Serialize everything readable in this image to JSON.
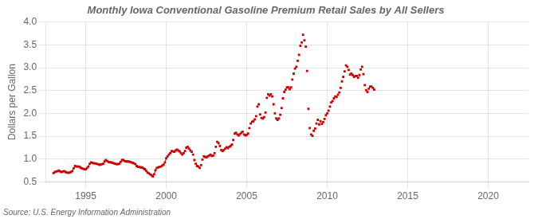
{
  "chart_data": {
    "type": "line",
    "title": "Monthly Iowa Conventional Gasoline Premium Retail Sales by All Sellers",
    "ylabel": "Dollars per Gallon",
    "annotations": [
      "Source: U.S. Energy Information Administration"
    ],
    "xlim": [
      1992.5,
      2022.5
    ],
    "xticks": [
      1995,
      2000,
      2005,
      2010,
      2015,
      2020
    ],
    "ylim": [
      0.5,
      4.0
    ],
    "yticks": [
      0.5,
      {
        "value": 1.0,
        "label": "1.0"
      },
      1.5,
      {
        "value": 2.0,
        "label": "2.0"
      },
      2.5,
      {
        "value": 3.0,
        "label": "3.0"
      },
      3.5,
      {
        "value": 4.0,
        "label": "4.0"
      }
    ],
    "grid": true,
    "series": [
      {
        "color": "#cc0000",
        "marker": "square",
        "line_style": "solid",
        "x": [
          1993,
          1993.0833333333333,
          1993.1666666666667,
          1993.25,
          1993.3333333333333,
          1993.4166666666667,
          1993.5,
          1993.5833333333333,
          1993.6666666666667,
          1993.75,
          1993.8333333333333,
          1993.9166666666667,
          1994,
          1994.0833333333333,
          1994.1666666666667,
          1994.25,
          1994.3333333333333,
          1994.4166666666667,
          1994.5,
          1994.5833333333333,
          1994.6666666666667,
          1994.75,
          1994.8333333333333,
          1994.9166666666667,
          1995,
          1995.0833333333333,
          1995.1666666666667,
          1995.25,
          1995.3333333333333,
          1995.4166666666667,
          1995.5,
          1995.5833333333333,
          1995.6666666666667,
          1995.75,
          1995.8333333333333,
          1995.9166666666667,
          1996,
          1996.0833333333333,
          1996.1666666666667,
          1996.25,
          1996.3333333333333,
          1996.4166666666667,
          1996.5,
          1996.5833333333333,
          1996.6666666666667,
          1996.75,
          1996.8333333333333,
          1996.9166666666667,
          1997,
          1997.0833333333333,
          1997.1666666666667,
          1997.25,
          1997.3333333333333,
          1997.4166666666667,
          1997.5,
          1997.5833333333333,
          1997.6666666666667,
          1997.75,
          1997.8333333333333,
          1997.9166666666667,
          1998,
          1998.0833333333333,
          1998.1666666666667,
          1998.25,
          1998.3333333333333,
          1998.4166666666667,
          1998.5,
          1998.5833333333333,
          1998.6666666666667,
          1998.75,
          1998.8333333333333,
          1998.9166666666667,
          1999,
          1999.0833333333333,
          1999.1666666666667,
          1999.25,
          1999.3333333333333,
          1999.4166666666667,
          1999.5,
          1999.5833333333333,
          1999.6666666666667,
          1999.75,
          1999.8333333333333,
          1999.9166666666667,
          2000,
          2000.0833333333333,
          2000.1666666666667,
          2000.25,
          2000.3333333333333,
          2000.4166666666667,
          2000.5,
          2000.5833333333333,
          2000.6666666666667,
          2000.75,
          2000.8333333333333,
          2000.9166666666667
        ],
        "values": [
          0.695,
          0.72,
          0.73,
          0.74,
          0.75,
          0.73,
          0.72,
          0.73,
          0.74,
          0.72,
          0.71,
          0.7,
          0.71,
          0.72,
          0.74,
          0.8,
          0.85,
          0.84,
          0.84,
          0.84,
          0.82,
          0.8,
          0.79,
          0.78,
          0.78,
          0.81,
          0.84,
          0.9,
          0.93,
          0.92,
          0.91,
          0.91,
          0.9,
          0.89,
          0.88,
          0.88,
          0.89,
          0.9,
          0.95,
          0.98,
          0.96,
          0.94,
          0.93,
          0.93,
          0.92,
          0.91,
          0.9,
          0.89,
          0.89,
          0.9,
          0.94,
          0.98,
          0.98,
          0.96,
          0.95,
          0.95,
          0.95,
          0.94,
          0.93,
          0.92,
          0.91,
          0.89,
          0.85,
          0.83,
          0.83,
          0.82,
          0.82,
          0.8,
          0.78,
          0.75,
          0.71,
          0.69,
          0.67,
          0.65,
          0.62,
          0.67,
          0.76,
          0.81,
          0.82,
          0.83,
          0.84,
          0.86,
          0.88,
          0.93,
          1.02,
          1.06,
          1.1,
          1.13,
          1.18,
          1.17,
          1.16,
          1.19,
          1.21,
          1.19,
          1.17,
          1.13
        ]
      },
      {
        "color": "#cc0000",
        "marker": "square",
        "line_style": "none",
        "x": [
          2001,
          2001.0833333333333,
          2001.1666666666667,
          2001.25,
          2001.3333333333333,
          2001.4166666666667,
          2001.5,
          2001.5833333333333,
          2001.6666666666667,
          2001.75,
          2001.8333333333333,
          2001.9166666666667,
          2002,
          2002.0833333333333,
          2002.1666666666667,
          2002.25,
          2002.3333333333333,
          2002.4166666666667,
          2002.5,
          2002.5833333333333,
          2002.6666666666667,
          2002.75,
          2002.8333333333333,
          2002.9166666666667,
          2003,
          2003.0833333333333,
          2003.1666666666667,
          2003.25,
          2003.3333333333333,
          2003.4166666666667,
          2003.5,
          2003.5833333333333,
          2003.6666666666667,
          2003.75,
          2003.8333333333333,
          2003.9166666666667,
          2004,
          2004.0833333333333,
          2004.1666666666667,
          2004.25,
          2004.3333333333333,
          2004.4166666666667,
          2004.5,
          2004.5833333333333,
          2004.6666666666667,
          2004.75,
          2004.8333333333333,
          2004.9166666666667,
          2005,
          2005.0833333333333,
          2005.1666666666667,
          2005.25,
          2005.3333333333333,
          2005.4166666666667,
          2005.5,
          2005.5833333333333,
          2005.6666666666667,
          2005.75,
          2005.8333333333333,
          2005.9166666666667,
          2006,
          2006.0833333333333,
          2006.1666666666667,
          2006.25,
          2006.3333333333333,
          2006.4166666666667,
          2006.5,
          2006.5833333333333,
          2006.6666666666667,
          2006.75,
          2006.8333333333333,
          2006.9166666666667,
          2007,
          2007.0833333333333,
          2007.1666666666667,
          2007.25,
          2007.3333333333333,
          2007.4166666666667,
          2007.5,
          2007.5833333333333,
          2007.6666666666667,
          2007.75,
          2007.8333333333333,
          2007.9166666666667,
          2008,
          2008.0833333333333,
          2008.1666666666667,
          2008.25,
          2008.3333333333333,
          2008.4166666666667,
          2008.5,
          2008.5833333333333,
          2008.6666666666667,
          2008.75,
          2008.8333333333333,
          2008.9166666666667,
          2009,
          2009.0833333333333,
          2009.1666666666667,
          2009.25,
          2009.3333333333333,
          2009.4166666666667,
          2009.5,
          2009.5833333333333,
          2009.6666666666667,
          2009.75,
          2009.8333333333333,
          2009.9166666666667,
          2010,
          2010.0833333333333,
          2010.1666666666667,
          2010.25,
          2010.3333333333333,
          2010.4166666666667,
          2010.5,
          2010.5833333333333,
          2010.6666666666667,
          2010.75,
          2010.8333333333333,
          2010.9166666666667,
          2011,
          2011.0833333333333,
          2011.1666666666667,
          2011.25,
          2011.3333333333333,
          2011.4166666666667,
          2011.5,
          2011.5833333333333,
          2011.6666666666667,
          2011.75,
          2011.8333333333333,
          2011.9166666666667,
          2012,
          2012.0833333333333,
          2012.1666666666667,
          2012.25,
          2012.3333333333333,
          2012.4166666666667,
          2012.5,
          2012.5833333333333,
          2012.6666666666667,
          2012.75,
          2012.8333333333333,
          2012.9166666666667
        ],
        "values": [
          1.1,
          1.13,
          1.18,
          1.25,
          1.27,
          1.23,
          1.19,
          1.16,
          1.1,
          0.98,
          0.9,
          0.85,
          0.84,
          0.81,
          0.87,
          0.99,
          1.06,
          1.05,
          1.04,
          1.06,
          1.08,
          1.1,
          1.07,
          1.08,
          1.13,
          1.27,
          1.38,
          1.35,
          1.29,
          1.2,
          1.18,
          1.2,
          1.23,
          1.26,
          1.24,
          1.27,
          1.29,
          1.32,
          1.42,
          1.56,
          1.58,
          1.54,
          1.52,
          1.55,
          1.58,
          1.6,
          1.54,
          1.52,
          1.53,
          1.56,
          1.68,
          1.78,
          1.82,
          1.83,
          1.87,
          1.94,
          2.15,
          2.2,
          1.98,
          1.9,
          1.89,
          1.92,
          2.02,
          2.34,
          2.42,
          2.39,
          2.42,
          2.37,
          2.2,
          2.0,
          1.89,
          1.86,
          1.89,
          1.97,
          2.12,
          2.33,
          2.47,
          2.52,
          2.57,
          2.57,
          2.53,
          2.57,
          2.74,
          2.87,
          2.98,
          3.02,
          3.15,
          3.28,
          3.48,
          3.55,
          3.72,
          3.6,
          3.46,
          2.93,
          2.1,
          1.68,
          1.54,
          1.51,
          1.62,
          1.67,
          1.78,
          1.86,
          1.76,
          1.83,
          1.77,
          1.81,
          1.88,
          1.96,
          2.0,
          2.06,
          2.15,
          2.24,
          2.27,
          2.33,
          2.37,
          2.36,
          2.41,
          2.46,
          2.56,
          2.7,
          2.8,
          2.92,
          3.05,
          3.02,
          2.95,
          2.85,
          2.87,
          2.84,
          2.8,
          2.82,
          2.82,
          2.78,
          2.84,
          2.96,
          3.02,
          2.86,
          2.62,
          2.51,
          2.47,
          2.54,
          2.59,
          2.59,
          2.56,
          2.52
        ]
      }
    ]
  }
}
